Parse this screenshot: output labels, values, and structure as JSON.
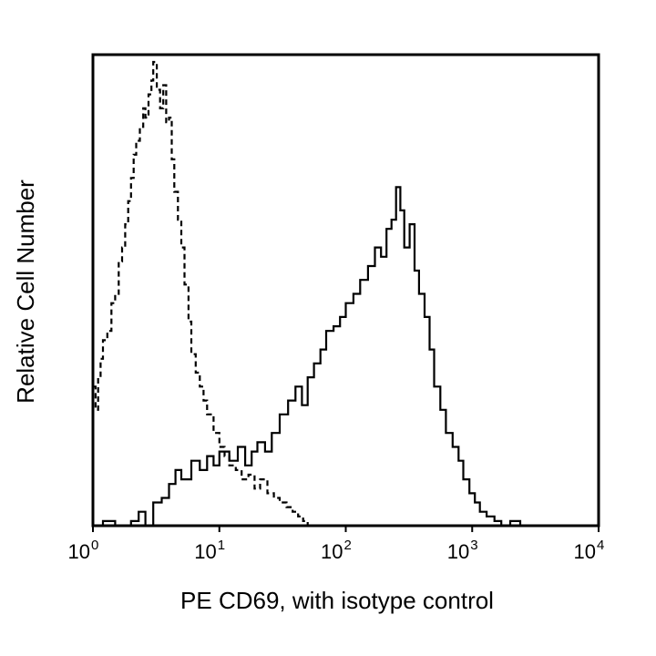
{
  "chart_data": {
    "type": "histogram",
    "xlabel": "PE CD69, with isotype control",
    "ylabel": "Relative Cell Number",
    "x_scale": "log",
    "xlim": [
      1,
      10000
    ],
    "ylim": [
      0,
      1
    ],
    "grid": false,
    "legend": "none",
    "ticks": [
      {
        "base": "10",
        "exp": "0"
      },
      {
        "base": "10",
        "exp": "1"
      },
      {
        "base": "10",
        "exp": "2"
      },
      {
        "base": "10",
        "exp": "3"
      },
      {
        "base": "10",
        "exp": "4"
      }
    ],
    "series": [
      {
        "style": "dashed",
        "color": "#000000",
        "x": [
          1.0,
          1.05,
          1.1,
          1.15,
          1.2,
          1.3,
          1.4,
          1.5,
          1.6,
          1.7,
          1.8,
          1.9,
          2.0,
          2.1,
          2.2,
          2.35,
          2.5,
          2.6,
          2.75,
          2.9,
          3.0,
          3.2,
          3.4,
          3.6,
          3.8,
          4.0,
          4.2,
          4.4,
          4.7,
          5.0,
          5.3,
          5.7,
          6.0,
          6.5,
          7.0,
          7.5,
          8.0,
          9.0,
          10.0,
          11.0,
          12.0,
          13.5,
          15.0,
          17.0,
          19.0,
          21.0,
          24.0,
          27.0,
          30.0,
          34.0,
          38.0,
          42.0,
          46.0,
          50.0,
          60.0,
          80.0,
          120.0
        ],
        "y": [
          0.3,
          0.25,
          0.32,
          0.36,
          0.4,
          0.42,
          0.48,
          0.5,
          0.57,
          0.6,
          0.65,
          0.7,
          0.75,
          0.8,
          0.83,
          0.86,
          0.9,
          0.88,
          0.93,
          0.96,
          1.0,
          0.94,
          0.9,
          0.95,
          0.87,
          0.88,
          0.79,
          0.72,
          0.66,
          0.6,
          0.52,
          0.44,
          0.37,
          0.33,
          0.3,
          0.27,
          0.24,
          0.2,
          0.17,
          0.15,
          0.13,
          0.12,
          0.1,
          0.11,
          0.08,
          0.1,
          0.07,
          0.06,
          0.05,
          0.04,
          0.03,
          0.02,
          0.01,
          0.0,
          0.0,
          0.0,
          0.0
        ]
      },
      {
        "style": "solid",
        "color": "#000000",
        "x": [
          1.0,
          1.2,
          1.5,
          2.0,
          2.3,
          2.6,
          3.0,
          3.5,
          4.0,
          4.5,
          5.0,
          6.0,
          7.0,
          8.0,
          9.0,
          10.0,
          12.0,
          14.0,
          16.0,
          18.0,
          20.0,
          23.0,
          26.0,
          30.0,
          35.0,
          40.0,
          45.0,
          50.0,
          56.0,
          63.0,
          70.0,
          80.0,
          90.0,
          100.0,
          115.0,
          130.0,
          150.0,
          170.0,
          190.0,
          210.0,
          230.0,
          250.0,
          270.0,
          290.0,
          320.0,
          350.0,
          380.0,
          420.0,
          460.0,
          500.0,
          560.0,
          620.0,
          700.0,
          780.0,
          850.0,
          950.0,
          1050.0,
          1150.0,
          1300.0,
          1500.0,
          1700.0,
          2000.0,
          2400.0,
          3000.0
        ],
        "y": [
          0.0,
          0.01,
          0.0,
          0.01,
          0.03,
          0.0,
          0.05,
          0.06,
          0.09,
          0.12,
          0.1,
          0.14,
          0.12,
          0.15,
          0.13,
          0.16,
          0.14,
          0.17,
          0.13,
          0.16,
          0.18,
          0.16,
          0.2,
          0.24,
          0.27,
          0.3,
          0.26,
          0.32,
          0.35,
          0.38,
          0.42,
          0.43,
          0.45,
          0.48,
          0.5,
          0.53,
          0.56,
          0.6,
          0.58,
          0.64,
          0.66,
          0.73,
          0.68,
          0.6,
          0.65,
          0.55,
          0.5,
          0.45,
          0.38,
          0.3,
          0.25,
          0.2,
          0.17,
          0.14,
          0.1,
          0.07,
          0.05,
          0.03,
          0.02,
          0.01,
          0.0,
          0.01,
          0.0,
          0.0
        ]
      }
    ]
  }
}
